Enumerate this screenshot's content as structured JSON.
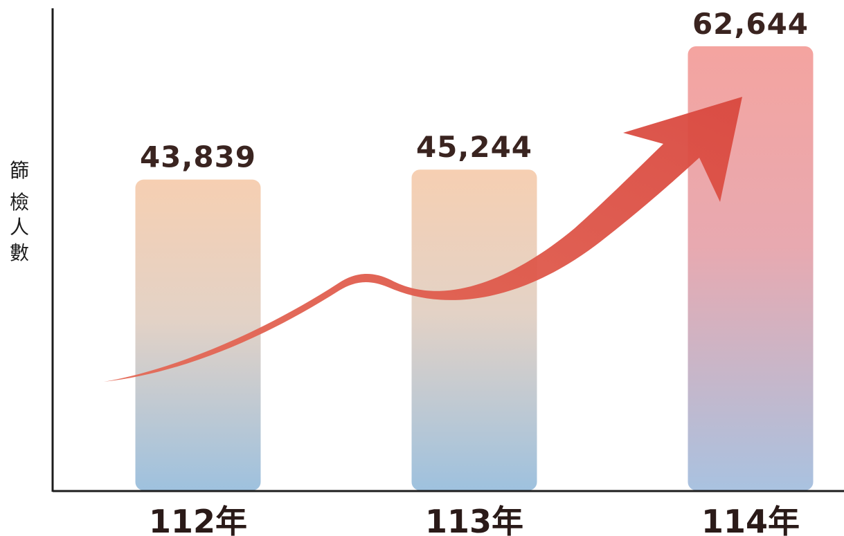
{
  "chart_data": {
    "type": "bar",
    "title": "",
    "xlabel": "",
    "ylabel": "篩檢人數",
    "categories": [
      "112年",
      "113年",
      "114年"
    ],
    "values": [
      43839,
      45244,
      62644
    ],
    "value_labels": [
      "43,839",
      "45,244",
      "62,644"
    ],
    "ylim": [
      0,
      68000
    ],
    "grid": false,
    "legend": "none",
    "annotations": [
      "upward trend arrow"
    ],
    "colors": {
      "bar_low_top": "#f6cfb2",
      "bar_high_top": "#f4a4a0",
      "bar_bottom": "#9ec1de",
      "arrow": "#e0584a",
      "axis": "#1c1c1c",
      "value_text": "#3a2420"
    }
  }
}
